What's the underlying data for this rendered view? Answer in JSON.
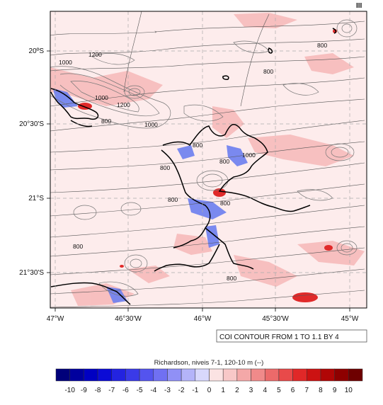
{
  "map": {
    "y_ticks": [
      "20ºS",
      "20°30'S",
      "21°S",
      "21°30'S"
    ],
    "x_ticks": [
      "47°W",
      "46°30'W",
      "46°W",
      "45°30'W",
      "45°W"
    ],
    "contour_labels": [
      "1200",
      "1000",
      "1000",
      "1200",
      "800",
      "1000",
      "800",
      "800",
      "800",
      "800",
      "800",
      "800",
      "800",
      "800",
      "800",
      "1000"
    ],
    "info_box": "COI CONTOUR FROM 1 TO 1.1 BY 4",
    "top_right_mark": "III"
  },
  "colorbar": {
    "title": "Richardson, niveis 7-1, 120-10 m  (--)",
    "labels": [
      "-10",
      "-9",
      "-8",
      "-7",
      "-6",
      "-5",
      "-4",
      "-3",
      "-2",
      "-1",
      "0",
      "1",
      "2",
      "3",
      "4",
      "5",
      "6",
      "7",
      "8",
      "9",
      "10"
    ],
    "colors": [
      "#00007a",
      "#00009e",
      "#0000c2",
      "#0b0bd6",
      "#2323e0",
      "#3a3ae8",
      "#5454ee",
      "#7070f2",
      "#9090f6",
      "#b4b4f9",
      "#d8d8fc",
      "#fbe3e3",
      "#f8c8c8",
      "#f4a8a8",
      "#f08a8a",
      "#ec6a6a",
      "#e84a4a",
      "#e02828",
      "#cc1212",
      "#b00606",
      "#8e0000",
      "#6e0000"
    ]
  },
  "colors": {
    "background": "#fdeeee",
    "positive": "#f0a0a0",
    "strong_positive": "#d81818",
    "negative": "#5a6ee8",
    "contour": "#666666",
    "coastline": "#000000"
  }
}
